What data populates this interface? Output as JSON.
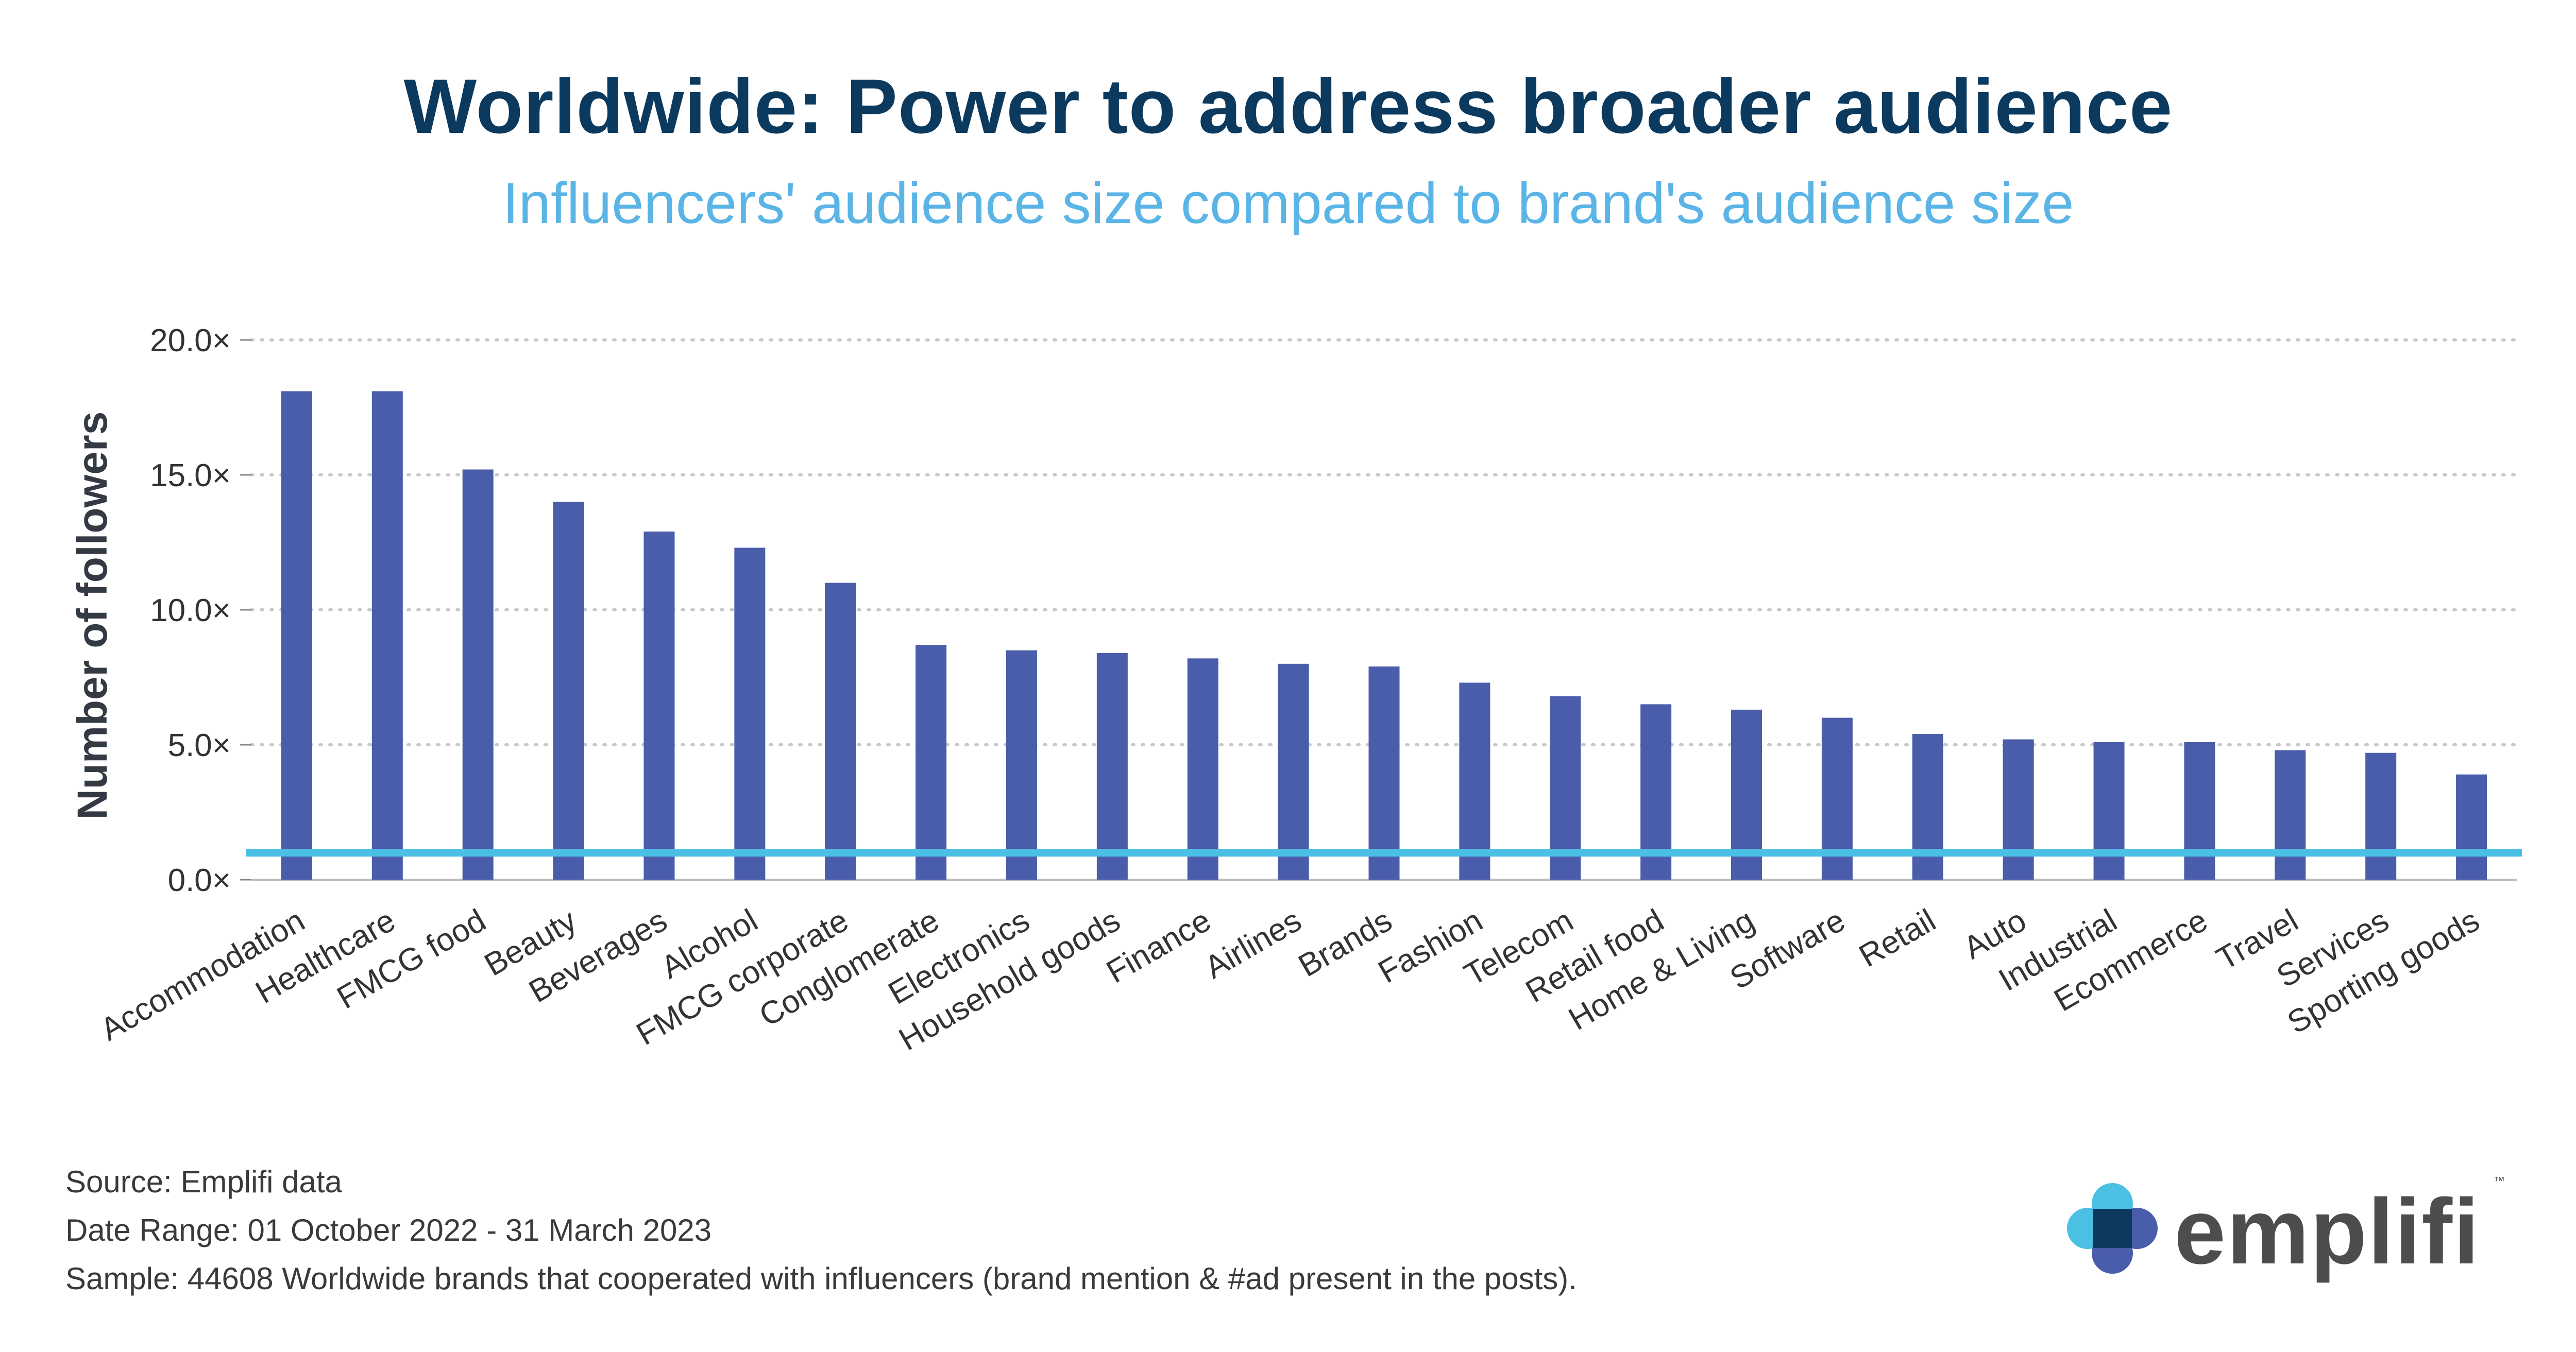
{
  "title": "Worldwide: Power to address broader audience",
  "subtitle": "Influencers' audience size compared to brand's audience size",
  "colors": {
    "bar": "#4a5dab",
    "baseline": "#4bbfe4",
    "title": "#0b3a5e",
    "subtitle": "#5ab4e6"
  },
  "chart_data": {
    "type": "bar",
    "title": "Worldwide: Power to address broader audience",
    "subtitle": "Influencers' audience size compared to brand's audience size",
    "xlabel": "",
    "ylabel": "Number of followers",
    "ylim": [
      0,
      20
    ],
    "yticks": [
      0,
      5,
      10,
      15,
      20
    ],
    "ytick_labels": [
      "0.0×",
      "5.0×",
      "10.0×",
      "15.0×",
      "20.0×"
    ],
    "grid": true,
    "reference_line": 1.0,
    "categories": [
      "Accommodation",
      "Healthcare",
      "FMCG food",
      "Beauty",
      "Beverages",
      "Alcohol",
      "FMCG corporate",
      "Conglomerate",
      "Electronics",
      "Household goods",
      "Finance",
      "Airlines",
      "Brands",
      "Fashion",
      "Telecom",
      "Retail food",
      "Home & Living",
      "Software",
      "Retail",
      "Auto",
      "Industrial",
      "Ecommerce",
      "Travel",
      "Services",
      "Sporting goods"
    ],
    "values": [
      18.1,
      18.1,
      15.2,
      14.0,
      12.9,
      12.3,
      11.0,
      8.7,
      8.5,
      8.4,
      8.2,
      8.0,
      7.9,
      7.3,
      6.8,
      6.5,
      6.3,
      6.0,
      5.4,
      5.2,
      5.1,
      5.1,
      4.8,
      4.7,
      3.9
    ]
  },
  "notes": {
    "source": "Source:  Emplifi data",
    "date_range": "Date Range: 01 October 2022 - 31 March 2023",
    "sample": "Sample:  44608 Worldwide brands that cooperated with influencers (brand mention & #ad present in the posts)."
  },
  "logo": {
    "text": "emplifi",
    "tm": "™"
  }
}
